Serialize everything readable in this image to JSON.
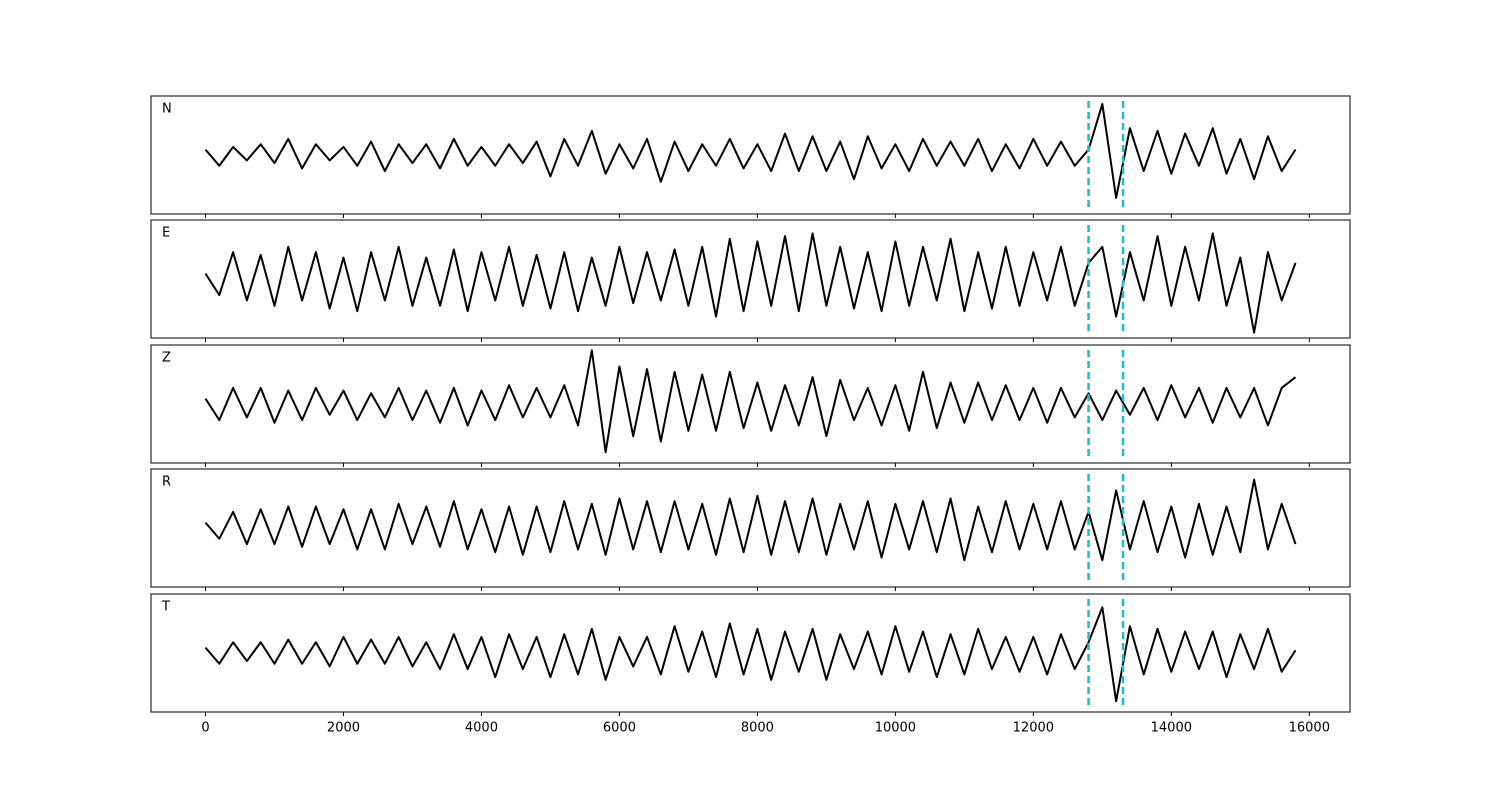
{
  "chart_data": {
    "type": "line",
    "x": [
      0,
      200,
      400,
      600,
      800,
      1000,
      1200,
      1400,
      1600,
      1800,
      2000,
      2200,
      2400,
      2600,
      2800,
      3000,
      3200,
      3400,
      3600,
      3800,
      4000,
      4200,
      4400,
      4600,
      4800,
      5000,
      5200,
      5400,
      5600,
      5800,
      6000,
      6200,
      6400,
      6600,
      6800,
      7000,
      7200,
      7400,
      7600,
      7800,
      8000,
      8200,
      8400,
      8600,
      8800,
      9000,
      9200,
      9400,
      9600,
      9800,
      10000,
      10200,
      10400,
      10600,
      10800,
      11000,
      11200,
      11400,
      11600,
      11800,
      12000,
      12200,
      12400,
      12600,
      12800,
      13000,
      13200,
      13400,
      13600,
      13800,
      14000,
      14200,
      14400,
      14600,
      14800,
      15000,
      15200,
      15400,
      15600,
      15800
    ],
    "xlim": [
      -790,
      16590
    ],
    "xticks": [
      0,
      2000,
      4000,
      6000,
      8000,
      10000,
      12000,
      14000,
      16000
    ],
    "ylim": [
      -1.1,
      1.1
    ],
    "vlines": {
      "x": [
        12800,
        13300
      ],
      "color": "#17becf"
    },
    "series": [
      {
        "name": "N",
        "color": "#000000",
        "values": [
          0.1,
          -0.2,
          0.15,
          -0.1,
          0.2,
          -0.15,
          0.3,
          -0.25,
          0.2,
          -0.1,
          0.15,
          -0.2,
          0.25,
          -0.3,
          0.2,
          -0.15,
          0.2,
          -0.25,
          0.3,
          -0.2,
          0.15,
          -0.2,
          0.2,
          -0.15,
          0.25,
          -0.4,
          0.3,
          -0.2,
          0.45,
          -0.35,
          0.2,
          -0.25,
          0.3,
          -0.5,
          0.25,
          -0.3,
          0.2,
          -0.2,
          0.3,
          -0.25,
          0.2,
          -0.3,
          0.4,
          -0.3,
          0.35,
          -0.3,
          0.25,
          -0.45,
          0.35,
          -0.25,
          0.2,
          -0.3,
          0.3,
          -0.2,
          0.25,
          -0.2,
          0.3,
          -0.3,
          0.2,
          -0.25,
          0.3,
          -0.2,
          0.25,
          -0.2,
          0.1,
          0.95,
          -0.8,
          0.5,
          -0.3,
          0.45,
          -0.35,
          0.4,
          -0.2,
          0.5,
          -0.35,
          0.3,
          -0.45,
          0.35,
          -0.3,
          0.1
        ]
      },
      {
        "name": "E",
        "color": "#000000",
        "values": [
          0.1,
          -0.3,
          0.5,
          -0.4,
          0.45,
          -0.5,
          0.6,
          -0.4,
          0.5,
          -0.55,
          0.4,
          -0.6,
          0.5,
          -0.4,
          0.6,
          -0.5,
          0.4,
          -0.5,
          0.55,
          -0.6,
          0.5,
          -0.4,
          0.6,
          -0.5,
          0.45,
          -0.55,
          0.5,
          -0.6,
          0.4,
          -0.5,
          0.6,
          -0.45,
          0.5,
          -0.4,
          0.55,
          -0.5,
          0.6,
          -0.7,
          0.75,
          -0.6,
          0.7,
          -0.5,
          0.8,
          -0.6,
          0.85,
          -0.5,
          0.6,
          -0.55,
          0.5,
          -0.6,
          0.7,
          -0.5,
          0.6,
          -0.4,
          0.75,
          -0.6,
          0.5,
          -0.55,
          0.6,
          -0.5,
          0.5,
          -0.4,
          0.6,
          -0.5,
          0.3,
          0.6,
          -0.7,
          0.5,
          -0.4,
          0.8,
          -0.5,
          0.6,
          -0.4,
          0.85,
          -0.5,
          0.4,
          -1.0,
          0.5,
          -0.4,
          0.3
        ]
      },
      {
        "name": "Z",
        "color": "#000000",
        "values": [
          0.1,
          -0.3,
          0.3,
          -0.25,
          0.3,
          -0.35,
          0.25,
          -0.3,
          0.3,
          -0.2,
          0.25,
          -0.3,
          0.2,
          -0.25,
          0.3,
          -0.3,
          0.25,
          -0.35,
          0.3,
          -0.4,
          0.25,
          -0.3,
          0.35,
          -0.25,
          0.3,
          -0.25,
          0.35,
          -0.4,
          1.0,
          -0.9,
          0.7,
          -0.6,
          0.65,
          -0.7,
          0.6,
          -0.5,
          0.55,
          -0.5,
          0.6,
          -0.45,
          0.4,
          -0.5,
          0.35,
          -0.4,
          0.5,
          -0.6,
          0.45,
          -0.3,
          0.3,
          -0.4,
          0.35,
          -0.5,
          0.6,
          -0.45,
          0.4,
          -0.35,
          0.4,
          -0.3,
          0.35,
          -0.3,
          0.3,
          -0.35,
          0.3,
          -0.25,
          0.2,
          -0.3,
          0.25,
          -0.2,
          0.3,
          -0.3,
          0.35,
          -0.25,
          0.3,
          -0.35,
          0.3,
          -0.25,
          0.3,
          -0.4,
          0.3,
          0.5
        ]
      },
      {
        "name": "R",
        "color": "#000000",
        "values": [
          0.1,
          -0.2,
          0.3,
          -0.3,
          0.35,
          -0.3,
          0.4,
          -0.35,
          0.4,
          -0.3,
          0.35,
          -0.4,
          0.35,
          -0.4,
          0.45,
          -0.3,
          0.4,
          -0.35,
          0.5,
          -0.4,
          0.35,
          -0.45,
          0.4,
          -0.5,
          0.4,
          -0.45,
          0.5,
          -0.4,
          0.45,
          -0.5,
          0.55,
          -0.4,
          0.5,
          -0.45,
          0.5,
          -0.4,
          0.45,
          -0.5,
          0.55,
          -0.45,
          0.6,
          -0.5,
          0.5,
          -0.45,
          0.55,
          -0.5,
          0.45,
          -0.4,
          0.5,
          -0.55,
          0.45,
          -0.4,
          0.5,
          -0.45,
          0.55,
          -0.6,
          0.4,
          -0.45,
          0.5,
          -0.4,
          0.45,
          -0.4,
          0.5,
          -0.4,
          0.3,
          -0.6,
          0.7,
          -0.4,
          0.5,
          -0.45,
          0.4,
          -0.55,
          0.45,
          -0.5,
          0.4,
          -0.45,
          0.9,
          -0.4,
          0.45,
          -0.3
        ]
      },
      {
        "name": "T",
        "color": "#000000",
        "values": [
          0.1,
          -0.2,
          0.2,
          -0.15,
          0.2,
          -0.2,
          0.25,
          -0.2,
          0.2,
          -0.25,
          0.3,
          -0.2,
          0.25,
          -0.2,
          0.3,
          -0.25,
          0.2,
          -0.3,
          0.35,
          -0.3,
          0.3,
          -0.45,
          0.35,
          -0.3,
          0.3,
          -0.45,
          0.35,
          -0.4,
          0.45,
          -0.5,
          0.3,
          -0.25,
          0.3,
          -0.4,
          0.5,
          -0.35,
          0.4,
          -0.45,
          0.55,
          -0.4,
          0.45,
          -0.5,
          0.4,
          -0.35,
          0.45,
          -0.5,
          0.35,
          -0.3,
          0.4,
          -0.4,
          0.5,
          -0.35,
          0.4,
          -0.45,
          0.35,
          -0.4,
          0.45,
          -0.3,
          0.3,
          -0.35,
          0.3,
          -0.4,
          0.35,
          -0.3,
          0.2,
          0.85,
          -0.9,
          0.5,
          -0.4,
          0.45,
          -0.35,
          0.4,
          -0.3,
          0.4,
          -0.45,
          0.35,
          -0.3,
          0.45,
          -0.35,
          0.05
        ]
      }
    ]
  }
}
